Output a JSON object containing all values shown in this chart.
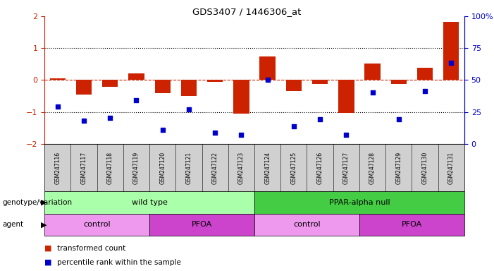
{
  "title": "GDS3407 / 1446306_at",
  "samples": [
    "GSM247116",
    "GSM247117",
    "GSM247118",
    "GSM247119",
    "GSM247120",
    "GSM247121",
    "GSM247122",
    "GSM247123",
    "GSM247124",
    "GSM247125",
    "GSM247126",
    "GSM247127",
    "GSM247128",
    "GSM247129",
    "GSM247130",
    "GSM247131"
  ],
  "bar_values": [
    0.05,
    -0.45,
    -0.2,
    0.22,
    -0.42,
    -0.5,
    -0.05,
    -1.05,
    0.75,
    -0.35,
    -0.12,
    -1.02,
    0.52,
    -0.12,
    0.38,
    1.82
  ],
  "dot_values": [
    -0.82,
    -1.28,
    -1.18,
    -0.62,
    -1.55,
    -0.92,
    -1.65,
    -1.72,
    0.0,
    -1.45,
    -1.22,
    -1.72,
    -0.38,
    -1.22,
    -0.35,
    0.55
  ],
  "bar_color": "#cc2200",
  "dot_color": "#0000cc",
  "ylim_left": [
    -2,
    2
  ],
  "yticks_left": [
    -2,
    -1,
    0,
    1,
    2
  ],
  "yticks_right": [
    0,
    25,
    50,
    75,
    100
  ],
  "dotted_lines": [
    -1.0,
    1.0
  ],
  "genotype_labels": [
    {
      "label": "wild type",
      "start": 0,
      "end": 8,
      "color": "#aaffaa"
    },
    {
      "label": "PPAR-alpha null",
      "start": 8,
      "end": 16,
      "color": "#44cc44"
    }
  ],
  "agent_labels": [
    {
      "label": "control",
      "start": 0,
      "end": 4,
      "color": "#ee99ee"
    },
    {
      "label": "PFOA",
      "start": 4,
      "end": 8,
      "color": "#cc44cc"
    },
    {
      "label": "control",
      "start": 8,
      "end": 12,
      "color": "#ee99ee"
    },
    {
      "label": "PFOA",
      "start": 12,
      "end": 16,
      "color": "#cc44cc"
    }
  ],
  "genotype_row_label": "genotype/variation",
  "agent_row_label": "agent",
  "legend_bar_label": "transformed count",
  "legend_dot_label": "percentile rank within the sample",
  "background_color": "#ffffff"
}
